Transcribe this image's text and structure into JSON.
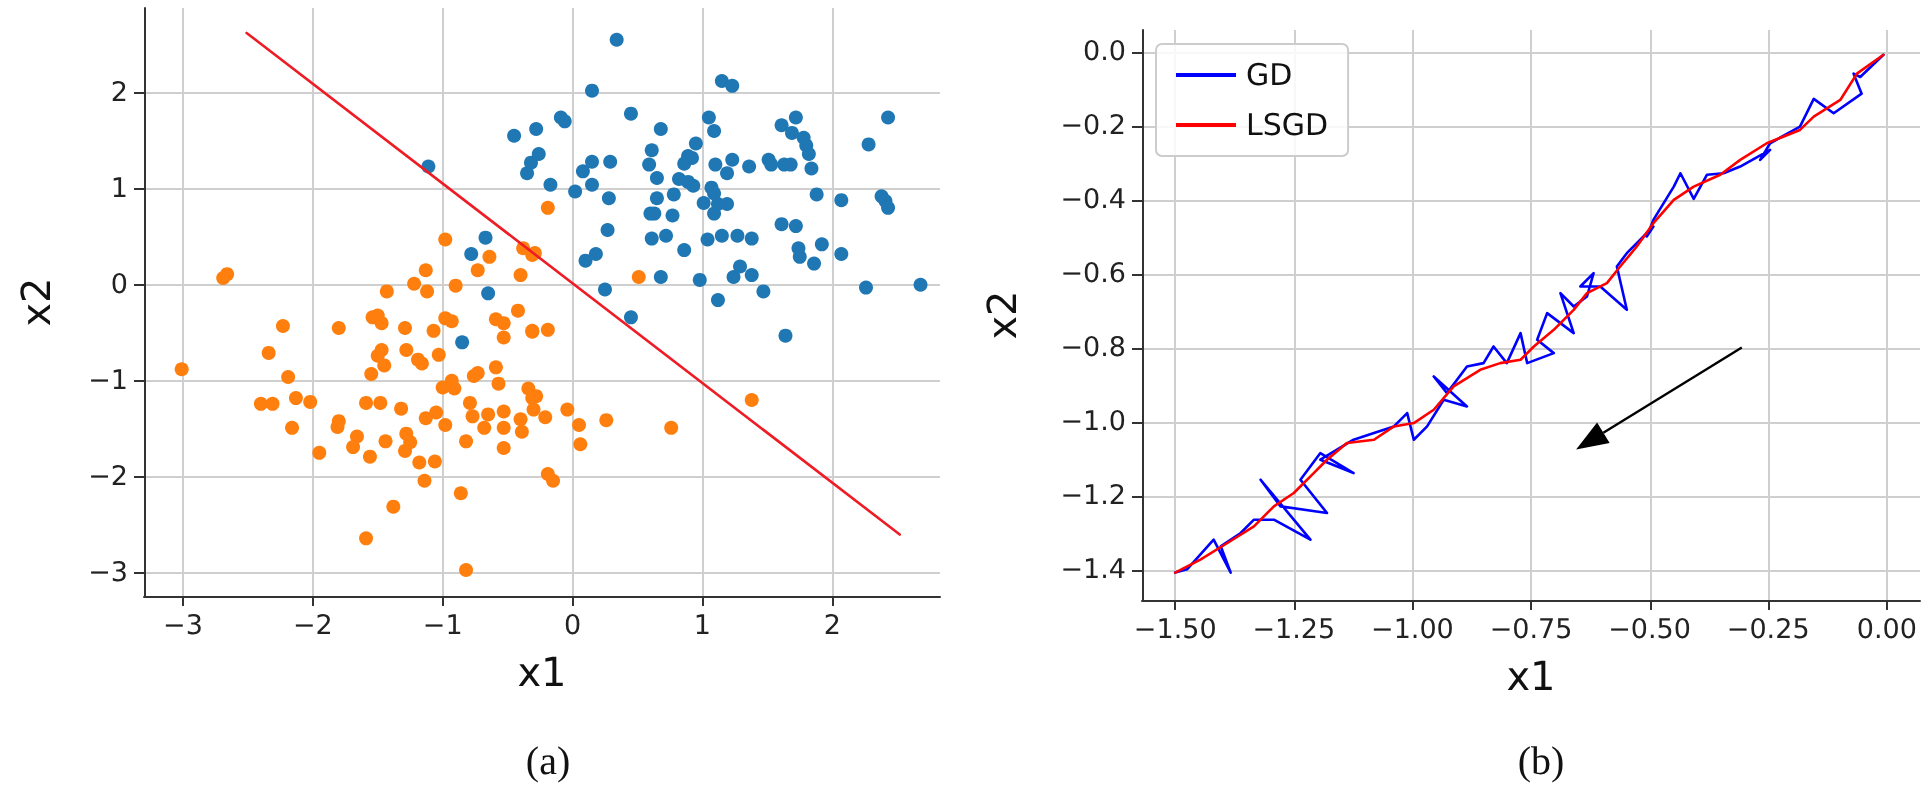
{
  "chart_data": [
    {
      "type": "scatter",
      "title": "(a)",
      "xlabel": "x1",
      "ylabel": "x2",
      "xlim": [
        -3.3,
        2.83
      ],
      "ylim": [
        -3.24,
        2.88
      ],
      "xticks": [
        {
          "value": -3,
          "label": "−3"
        },
        {
          "value": -2,
          "label": "−2"
        },
        {
          "value": -1,
          "label": "−1"
        },
        0,
        1,
        2
      ],
      "yticks": [
        {
          "value": -3,
          "label": "−3"
        },
        {
          "value": -2,
          "label": "−2"
        },
        {
          "value": -1,
          "label": "−1"
        },
        0,
        1,
        2
      ],
      "grid": true,
      "legend": false,
      "marker": "circle",
      "series": [
        {
          "color": "#ff7f0e",
          "x": [
            -3.01,
            -2.69,
            -2.66,
            -2.23,
            -2.34,
            -2.19,
            -2.4,
            -2.31,
            -2.13,
            -2.02,
            -2.16,
            -1.95,
            -1.8,
            -1.8,
            -1.81,
            -1.66,
            -1.69,
            -1.56,
            -1.59,
            -1.48,
            -1.55,
            -1.5,
            -1.47,
            -1.54,
            -1.5,
            -1.47,
            -1.45,
            -1.43,
            -1.44,
            -1.38,
            -1.59,
            -1.32,
            -1.29,
            -1.28,
            -1.28,
            -1.29,
            -1.25,
            -1.22,
            -1.19,
            -1.16,
            -1.18,
            -1.14,
            -1.13,
            -1.12,
            -1.13,
            -1.07,
            -1.06,
            -1.05,
            -1.03,
            -0.98,
            -0.93,
            -1.0,
            -0.98,
            -0.98,
            -0.9,
            -0.93,
            -0.91,
            -0.86,
            -0.82,
            -0.82,
            -0.79,
            -0.77,
            -0.76,
            -0.73,
            -0.73,
            -0.64,
            -0.65,
            -0.68,
            -0.59,
            -0.53,
            -0.59,
            -0.57,
            -0.53,
            -0.53,
            -0.53,
            -0.53,
            -0.42,
            -0.4,
            -0.39,
            -0.38,
            -0.34,
            -0.31,
            -0.4,
            -0.31,
            -0.29,
            -0.19,
            -0.31,
            -0.31,
            -0.19,
            -0.28,
            -0.3,
            -0.21,
            -0.04,
            0.05,
            0.06,
            0.26,
            -0.19,
            -0.15,
            0.51,
            0.76,
            1.38
          ],
          "values": [
            -0.88,
            0.07,
            0.11,
            -0.43,
            -0.71,
            -0.96,
            -1.24,
            -1.24,
            -1.18,
            -1.22,
            -1.49,
            -1.75,
            -0.45,
            -1.42,
            -1.48,
            -1.58,
            -1.69,
            -1.79,
            -1.23,
            -1.23,
            -0.93,
            -0.74,
            -0.68,
            -0.34,
            -0.32,
            -0.4,
            -0.84,
            -0.07,
            -1.63,
            -2.31,
            -2.64,
            -1.29,
            -0.45,
            -0.68,
            -1.55,
            -1.73,
            -1.64,
            0.01,
            -0.78,
            -0.82,
            -1.85,
            -2.04,
            0.15,
            -0.07,
            -1.39,
            -0.48,
            -1.84,
            -1.33,
            -0.73,
            -0.35,
            -0.38,
            -1.07,
            -1.46,
            0.47,
            -0.01,
            -1.0,
            -1.08,
            -2.17,
            -2.97,
            -1.63,
            -1.23,
            -1.37,
            -0.95,
            -0.92,
            0.15,
            0.29,
            -1.35,
            -1.49,
            -0.36,
            -0.4,
            -0.86,
            -1.03,
            -0.55,
            -1.32,
            -1.49,
            -1.7,
            -0.27,
            0.1,
            -1.53,
            0.38,
            -1.08,
            -1.18,
            -1.4,
            -0.49,
            0.33,
            0.8,
            0.31,
            -0.48,
            -0.47,
            -1.16,
            -1.3,
            -1.38,
            -1.3,
            -1.46,
            -1.66,
            -1.41,
            -1.97,
            -2.04,
            0.08,
            -1.49,
            -1.2
          ]
        },
        {
          "color": "#1f77b4",
          "x": [
            -1.11,
            -0.45,
            -0.28,
            -0.35,
            -0.32,
            -0.26,
            -0.67,
            -0.78,
            -0.65,
            -0.85,
            0.34,
            0.15,
            -0.09,
            -0.06,
            -0.17,
            0.02,
            0.08,
            0.15,
            0.15,
            0.29,
            0.28,
            0.27,
            0.1,
            0.18,
            0.25,
            0.45,
            0.45,
            0.61,
            0.59,
            0.68,
            0.65,
            0.6,
            0.63,
            0.65,
            0.61,
            0.72,
            0.77,
            0.78,
            0.68,
            0.86,
            0.82,
            0.86,
            0.89,
            0.95,
            0.89,
            0.93,
            0.92,
            1.01,
            1.05,
            1.09,
            1.07,
            1.09,
            1.04,
            0.98,
            1.1,
            1.09,
            1.12,
            1.19,
            1.15,
            1.23,
            1.12,
            1.19,
            1.23,
            1.15,
            1.27,
            1.24,
            1.29,
            1.36,
            1.38,
            1.38,
            1.47,
            1.51,
            1.53,
            1.63,
            1.68,
            1.61,
            1.64,
            1.61,
            1.72,
            1.74,
            1.75,
            1.69,
            1.72,
            1.78,
            1.8,
            1.82,
            1.84,
            1.86,
            1.88,
            1.92,
            2.07,
            2.07,
            2.26,
            2.28,
            2.38,
            2.41,
            2.43,
            2.43,
            2.68
          ],
          "values": [
            1.23,
            1.55,
            1.62,
            1.16,
            1.27,
            1.36,
            0.49,
            0.32,
            -0.09,
            -0.6,
            2.55,
            2.02,
            1.74,
            1.7,
            1.04,
            0.97,
            1.18,
            1.28,
            1.04,
            1.28,
            0.9,
            0.57,
            0.25,
            0.32,
            -0.05,
            1.78,
            -0.34,
            1.4,
            1.25,
            1.62,
            1.11,
            0.74,
            0.74,
            0.9,
            0.48,
            0.51,
            0.72,
            0.94,
            0.08,
            0.36,
            1.1,
            1.26,
            1.34,
            1.47,
            1.07,
            1.03,
            1.32,
            0.85,
            1.74,
            1.6,
            1.01,
            0.95,
            0.47,
            0.05,
            1.25,
            0.74,
            0.84,
            0.84,
            2.12,
            2.07,
            -0.16,
            1.16,
            1.3,
            0.51,
            0.51,
            0.08,
            0.19,
            1.23,
            0.48,
            0.1,
            -0.07,
            1.3,
            1.25,
            1.25,
            1.25,
            1.66,
            -0.53,
            0.63,
            0.61,
            0.38,
            0.29,
            1.58,
            1.74,
            1.53,
            1.45,
            1.36,
            1.21,
            0.22,
            0.94,
            0.42,
            0.88,
            0.32,
            -0.03,
            1.46,
            0.92,
            0.87,
            0.8,
            1.74,
            0.0
          ]
        },
        {
          "type": "line",
          "color": "#ee1c25",
          "marker": "none",
          "x": [
            -2.51,
            2.52
          ],
          "values": [
            2.62,
            -2.6
          ]
        }
      ]
    },
    {
      "type": "line",
      "title": "(b)",
      "xlabel": "x1",
      "ylabel": "x2",
      "xlim": [
        -1.57,
        0.07
      ],
      "ylim": [
        -1.48,
        0.06
      ],
      "xticks": [
        {
          "value": -1.5,
          "label": "−1.50"
        },
        {
          "value": -1.25,
          "label": "−1.25"
        },
        {
          "value": -1,
          "label": "−1.00"
        },
        {
          "value": -0.75,
          "label": "−0.75"
        },
        {
          "value": -0.5,
          "label": "−0.50"
        },
        {
          "value": -0.25,
          "label": "−0.25"
        },
        {
          "value": 0,
          "label": "0.00"
        }
      ],
      "yticks": [
        {
          "value": 0,
          "label": "0.0"
        },
        {
          "value": -0.2,
          "label": "−0.2"
        },
        {
          "value": -0.4,
          "label": "−0.4"
        },
        {
          "value": -0.6,
          "label": "−0.6"
        },
        {
          "value": -0.8,
          "label": "−0.8"
        },
        {
          "value": -1,
          "label": "−1.0"
        },
        {
          "value": -1.2,
          "label": "−1.2"
        },
        {
          "value": -1.4,
          "label": "−1.4"
        }
      ],
      "grid": true,
      "legend": "top left",
      "marker": "none",
      "line_style": "solid",
      "series": [
        {
          "name": "GD",
          "color": "#0000ff",
          "x": [
            -0.007,
            -0.056,
            -0.07,
            -0.053,
            -0.112,
            -0.154,
            -0.183,
            -0.246,
            -0.267,
            -0.246,
            -0.309,
            -0.344,
            -0.379,
            -0.407,
            -0.435,
            -0.449,
            -0.492,
            -0.506,
            -0.492,
            -0.548,
            -0.569,
            -0.548,
            -0.604,
            -0.646,
            -0.618,
            -0.632,
            -0.66,
            -0.688,
            -0.66,
            -0.716,
            -0.737,
            -0.702,
            -0.758,
            -0.772,
            -0.801,
            -0.829,
            -0.85,
            -0.885,
            -0.927,
            -0.955,
            -0.885,
            -0.934,
            -0.969,
            -0.997,
            -1.011,
            -1.039,
            -1.081,
            -1.124,
            -1.194,
            -1.124,
            -1.194,
            -1.236,
            -1.18,
            -1.278,
            -1.32,
            -1.215,
            -1.292,
            -1.334,
            -1.362,
            -1.404,
            -1.383,
            -1.419,
            -1.475,
            -1.5
          ],
          "values": [
            -0.007,
            -0.067,
            -0.058,
            -0.112,
            -0.165,
            -0.126,
            -0.201,
            -0.246,
            -0.291,
            -0.264,
            -0.309,
            -0.327,
            -0.331,
            -0.396,
            -0.327,
            -0.363,
            -0.453,
            -0.498,
            -0.471,
            -0.543,
            -0.579,
            -0.696,
            -0.633,
            -0.633,
            -0.597,
            -0.66,
            -0.687,
            -0.651,
            -0.759,
            -0.705,
            -0.777,
            -0.813,
            -0.84,
            -0.759,
            -0.84,
            -0.795,
            -0.84,
            -0.849,
            -0.921,
            -0.876,
            -0.957,
            -0.939,
            -1.011,
            -1.047,
            -0.975,
            -1.011,
            -1.029,
            -1.047,
            -1.101,
            -1.137,
            -1.083,
            -1.155,
            -1.245,
            -1.227,
            -1.155,
            -1.317,
            -1.263,
            -1.263,
            -1.299,
            -1.335,
            -1.406,
            -1.317,
            -1.397,
            -1.406
          ]
        },
        {
          "name": "LSGD",
          "color": "#ff0000",
          "x": [
            -0.007,
            -0.063,
            -0.098,
            -0.154,
            -0.183,
            -0.253,
            -0.309,
            -0.351,
            -0.407,
            -0.449,
            -0.492,
            -0.527,
            -0.562,
            -0.59,
            -0.632,
            -0.66,
            -0.702,
            -0.744,
            -0.772,
            -0.815,
            -0.857,
            -0.913,
            -0.955,
            -0.997,
            -1.039,
            -1.081,
            -1.138,
            -1.18,
            -1.208,
            -1.25,
            -1.292,
            -1.334,
            -1.39,
            -1.447,
            -1.5
          ],
          "values": [
            -0.007,
            -0.058,
            -0.129,
            -0.174,
            -0.21,
            -0.246,
            -0.291,
            -0.331,
            -0.363,
            -0.399,
            -0.462,
            -0.525,
            -0.579,
            -0.624,
            -0.651,
            -0.696,
            -0.75,
            -0.795,
            -0.831,
            -0.84,
            -0.858,
            -0.903,
            -0.966,
            -1.002,
            -1.011,
            -1.047,
            -1.056,
            -1.101,
            -1.137,
            -1.191,
            -1.227,
            -1.281,
            -1.326,
            -1.371,
            -1.406
          ]
        }
      ]
    }
  ]
}
